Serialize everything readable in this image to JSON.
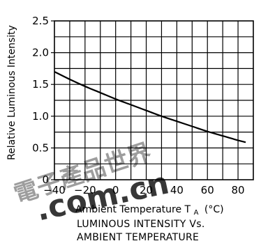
{
  "chart_data": {
    "type": "line",
    "title": "",
    "xlabel": "Ambient Temperature T",
    "xlabel_subscript": "A",
    "xlabel_unit": "(°C)",
    "ylabel": "Relative Luminous Intensity",
    "xlim": [
      -40,
      90
    ],
    "ylim": [
      0,
      2.5
    ],
    "x_ticks": [
      -40,
      -20,
      0,
      20,
      40,
      60,
      80
    ],
    "x_tick_labels": [
      "−40",
      "−20",
      "0",
      "20",
      "40",
      "60",
      "80"
    ],
    "y_ticks": [
      0,
      0.5,
      1.0,
      1.5,
      2.0,
      2.5
    ],
    "y_tick_labels": [
      "0",
      "0.5",
      "1.0",
      "1.5",
      "2.0",
      "2.5"
    ],
    "grid": true,
    "series": [
      {
        "x": [
          -40,
          -30,
          -20,
          -10,
          0,
          10,
          20,
          30,
          40,
          50,
          60,
          70,
          80,
          85
        ],
        "values": [
          1.7,
          1.58,
          1.47,
          1.37,
          1.27,
          1.18,
          1.09,
          1.0,
          0.92,
          0.84,
          0.76,
          0.69,
          0.62,
          0.59
        ]
      }
    ],
    "caption_line1": "LUMINOUS INTENSITY Vs.",
    "caption_line2": "AMBIENT TEMPERATURE"
  },
  "watermark": {
    "chinese": "電子產品世界",
    "domain": ".com.cn",
    "color": "#e23a32"
  }
}
